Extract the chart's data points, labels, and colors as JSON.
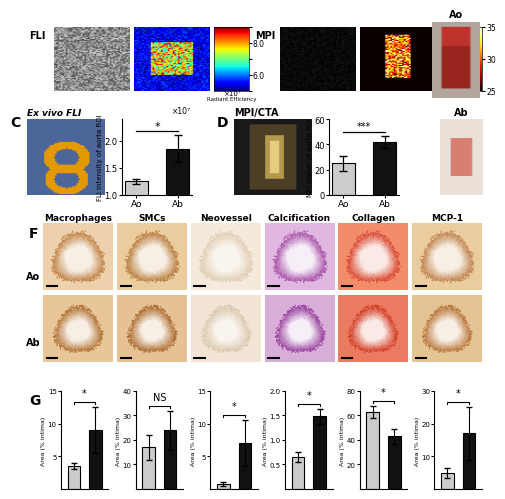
{
  "panel_G": {
    "macrophages": {
      "Ao_mean": 3.5,
      "Ao_err": 0.5,
      "Ab_mean": 9.0,
      "Ab_err": 3.5,
      "ymax": 15,
      "yticks": [
        5,
        10,
        15
      ],
      "sig": "*"
    },
    "SMCs": {
      "Ao_mean": 17.0,
      "Ao_err": 5.0,
      "Ab_mean": 24.0,
      "Ab_err": 8.0,
      "ymax": 40,
      "yticks": [
        10,
        20,
        30,
        40
      ],
      "sig": "NS"
    },
    "neovessel": {
      "Ao_mean": 0.8,
      "Ao_err": 0.3,
      "Ab_mean": 7.0,
      "Ab_err": 3.5,
      "ymax": 15,
      "yticks": [
        5,
        10,
        15
      ],
      "sig": "*"
    },
    "calcification": {
      "Ao_mean": 0.65,
      "Ao_err": 0.1,
      "Ab_mean": 1.48,
      "Ab_err": 0.15,
      "ymax": 2.0,
      "yticks": [
        0.5,
        1.0,
        1.5,
        2.0
      ],
      "sig": "*"
    },
    "collagen": {
      "Ao_mean": 63.0,
      "Ao_err": 5.0,
      "Ab_mean": 43.0,
      "Ab_err": 6.0,
      "ymax": 80,
      "yticks": [
        20,
        40,
        60,
        80
      ],
      "sig": "*"
    },
    "MCP1": {
      "Ao_mean": 5.0,
      "Ao_err": 1.5,
      "Ab_mean": 17.0,
      "Ab_err": 8.0,
      "ymax": 30,
      "yticks": [
        10,
        20,
        30
      ],
      "sig": "*"
    }
  },
  "panel_C": {
    "Ao_mean": 1.25,
    "Ao_err": 0.05,
    "Ab_mean": 1.85,
    "Ab_err": 0.25,
    "ymin": 1.0,
    "ymax": 2.4,
    "yticks": [
      1.0,
      1.5,
      2.0
    ],
    "sig": "*",
    "ylabel": "FLI intensity of aorta ROI",
    "scale_label": "×10⁷"
  },
  "panel_D": {
    "Ao_mean": 25,
    "Ao_err": 6,
    "Ab_mean": 42,
    "Ab_err": 5,
    "ymin": 0,
    "ymax": 60,
    "yticks": [
      0,
      20,
      40,
      60
    ],
    "sig": "***",
    "ylabel": "MPI signal of aorta ROI"
  },
  "bar_color_Ao": "#cccccc",
  "bar_color_Ab": "#111111",
  "bg_color": "#ffffff",
  "section_F_titles": [
    "Macrophages",
    "SMCs",
    "Neovessel",
    "Calcification",
    "Collagen",
    "MCP-1"
  ],
  "fli_colorbar_ticks": [
    6.0,
    8.0
  ],
  "fli_colorbar_label": "×10⁷",
  "mpi_colorbar_ticks": [
    25,
    30,
    35
  ]
}
